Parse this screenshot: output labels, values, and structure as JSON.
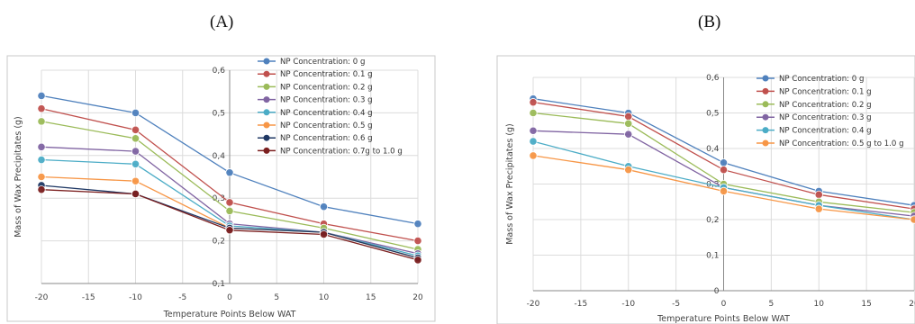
{
  "panels": {
    "a_label": "(A)",
    "b_label": "(B)"
  },
  "chart_data": [
    {
      "type": "line",
      "panel": "(A)",
      "title": "",
      "xlabel": "Temperature Points Below WAT",
      "ylabel": "Mass of Wax Precipitates (g)",
      "x": [
        -20,
        -10,
        0,
        10,
        20
      ],
      "xticks": [
        -20,
        -15,
        -10,
        -5,
        0,
        5,
        10,
        15,
        20
      ],
      "xlim": [
        -20,
        20
      ],
      "ylim": [
        0.1,
        0.6
      ],
      "yticks": [
        0.1,
        0.2,
        0.3,
        0.4,
        0.5,
        0.6
      ],
      "ytick_labels": [
        "0,1",
        "0,2",
        "0,3",
        "0,4",
        "0,5",
        "0,6"
      ],
      "grid": true,
      "legend_position": "top-right",
      "series": [
        {
          "name": "NP Concentration: 0 g",
          "color": "#4f81bd",
          "values": [
            0.54,
            0.5,
            0.36,
            0.28,
            0.24
          ]
        },
        {
          "name": "NP Concentration: 0.1 g",
          "color": "#c0504d",
          "values": [
            0.51,
            0.46,
            0.29,
            0.24,
            0.2
          ]
        },
        {
          "name": "NP Concentration: 0.2 g",
          "color": "#9bbb59",
          "values": [
            0.48,
            0.44,
            0.27,
            0.23,
            0.18
          ]
        },
        {
          "name": "NP Concentration: 0.3 g",
          "color": "#8064a2",
          "values": [
            0.42,
            0.41,
            0.24,
            0.22,
            0.17
          ]
        },
        {
          "name": "NP Concentration: 0.4 g",
          "color": "#4bacc6",
          "values": [
            0.39,
            0.38,
            0.235,
            0.22,
            0.165
          ]
        },
        {
          "name": "NP Concentration: 0.5 g",
          "color": "#f79646",
          "values": [
            0.35,
            0.34,
            0.23,
            0.22,
            0.16
          ]
        },
        {
          "name": "NP Concentration: 0.6 g",
          "color": "#1f3864",
          "values": [
            0.33,
            0.31,
            0.23,
            0.22,
            0.16
          ]
        },
        {
          "name": "NP Concentration: 0.7g to 1.0 g",
          "color": "#7b1f1f",
          "values": [
            0.32,
            0.31,
            0.225,
            0.215,
            0.155
          ]
        }
      ]
    },
    {
      "type": "line",
      "panel": "(B)",
      "title": "",
      "xlabel": "Temperature Points Below WAT",
      "ylabel": "Mass of Wax Precipitates (g)",
      "x": [
        -20,
        -10,
        0,
        10,
        20
      ],
      "xticks": [
        -20,
        -15,
        -10,
        -5,
        0,
        5,
        10,
        15,
        20
      ],
      "xlim": [
        -20,
        20
      ],
      "ylim": [
        0,
        0.6
      ],
      "yticks": [
        0,
        0.1,
        0.2,
        0.3,
        0.4,
        0.5,
        0.6
      ],
      "ytick_labels": [
        "0",
        "0,1",
        "0,2",
        "0,3",
        "0,4",
        "0,5",
        "0,6"
      ],
      "grid": true,
      "legend_position": "top-right",
      "series": [
        {
          "name": "NP Concentration: 0 g",
          "color": "#4f81bd",
          "values": [
            0.54,
            0.5,
            0.36,
            0.28,
            0.24
          ]
        },
        {
          "name": "NP Concentration: 0.1 g",
          "color": "#c0504d",
          "values": [
            0.53,
            0.49,
            0.34,
            0.27,
            0.23
          ]
        },
        {
          "name": "NP Concentration: 0.2 g",
          "color": "#9bbb59",
          "values": [
            0.5,
            0.47,
            0.3,
            0.25,
            0.22
          ]
        },
        {
          "name": "NP Concentration: 0.3 g",
          "color": "#8064a2",
          "values": [
            0.45,
            0.44,
            0.29,
            0.24,
            0.21
          ]
        },
        {
          "name": "NP Concentration: 0.4 g",
          "color": "#4bacc6",
          "values": [
            0.42,
            0.35,
            0.29,
            0.24,
            0.2
          ]
        },
        {
          "name": "NP Concentration: 0.5 g to 1.0 g",
          "color": "#f79646",
          "values": [
            0.38,
            0.34,
            0.28,
            0.23,
            0.2
          ]
        }
      ]
    }
  ]
}
